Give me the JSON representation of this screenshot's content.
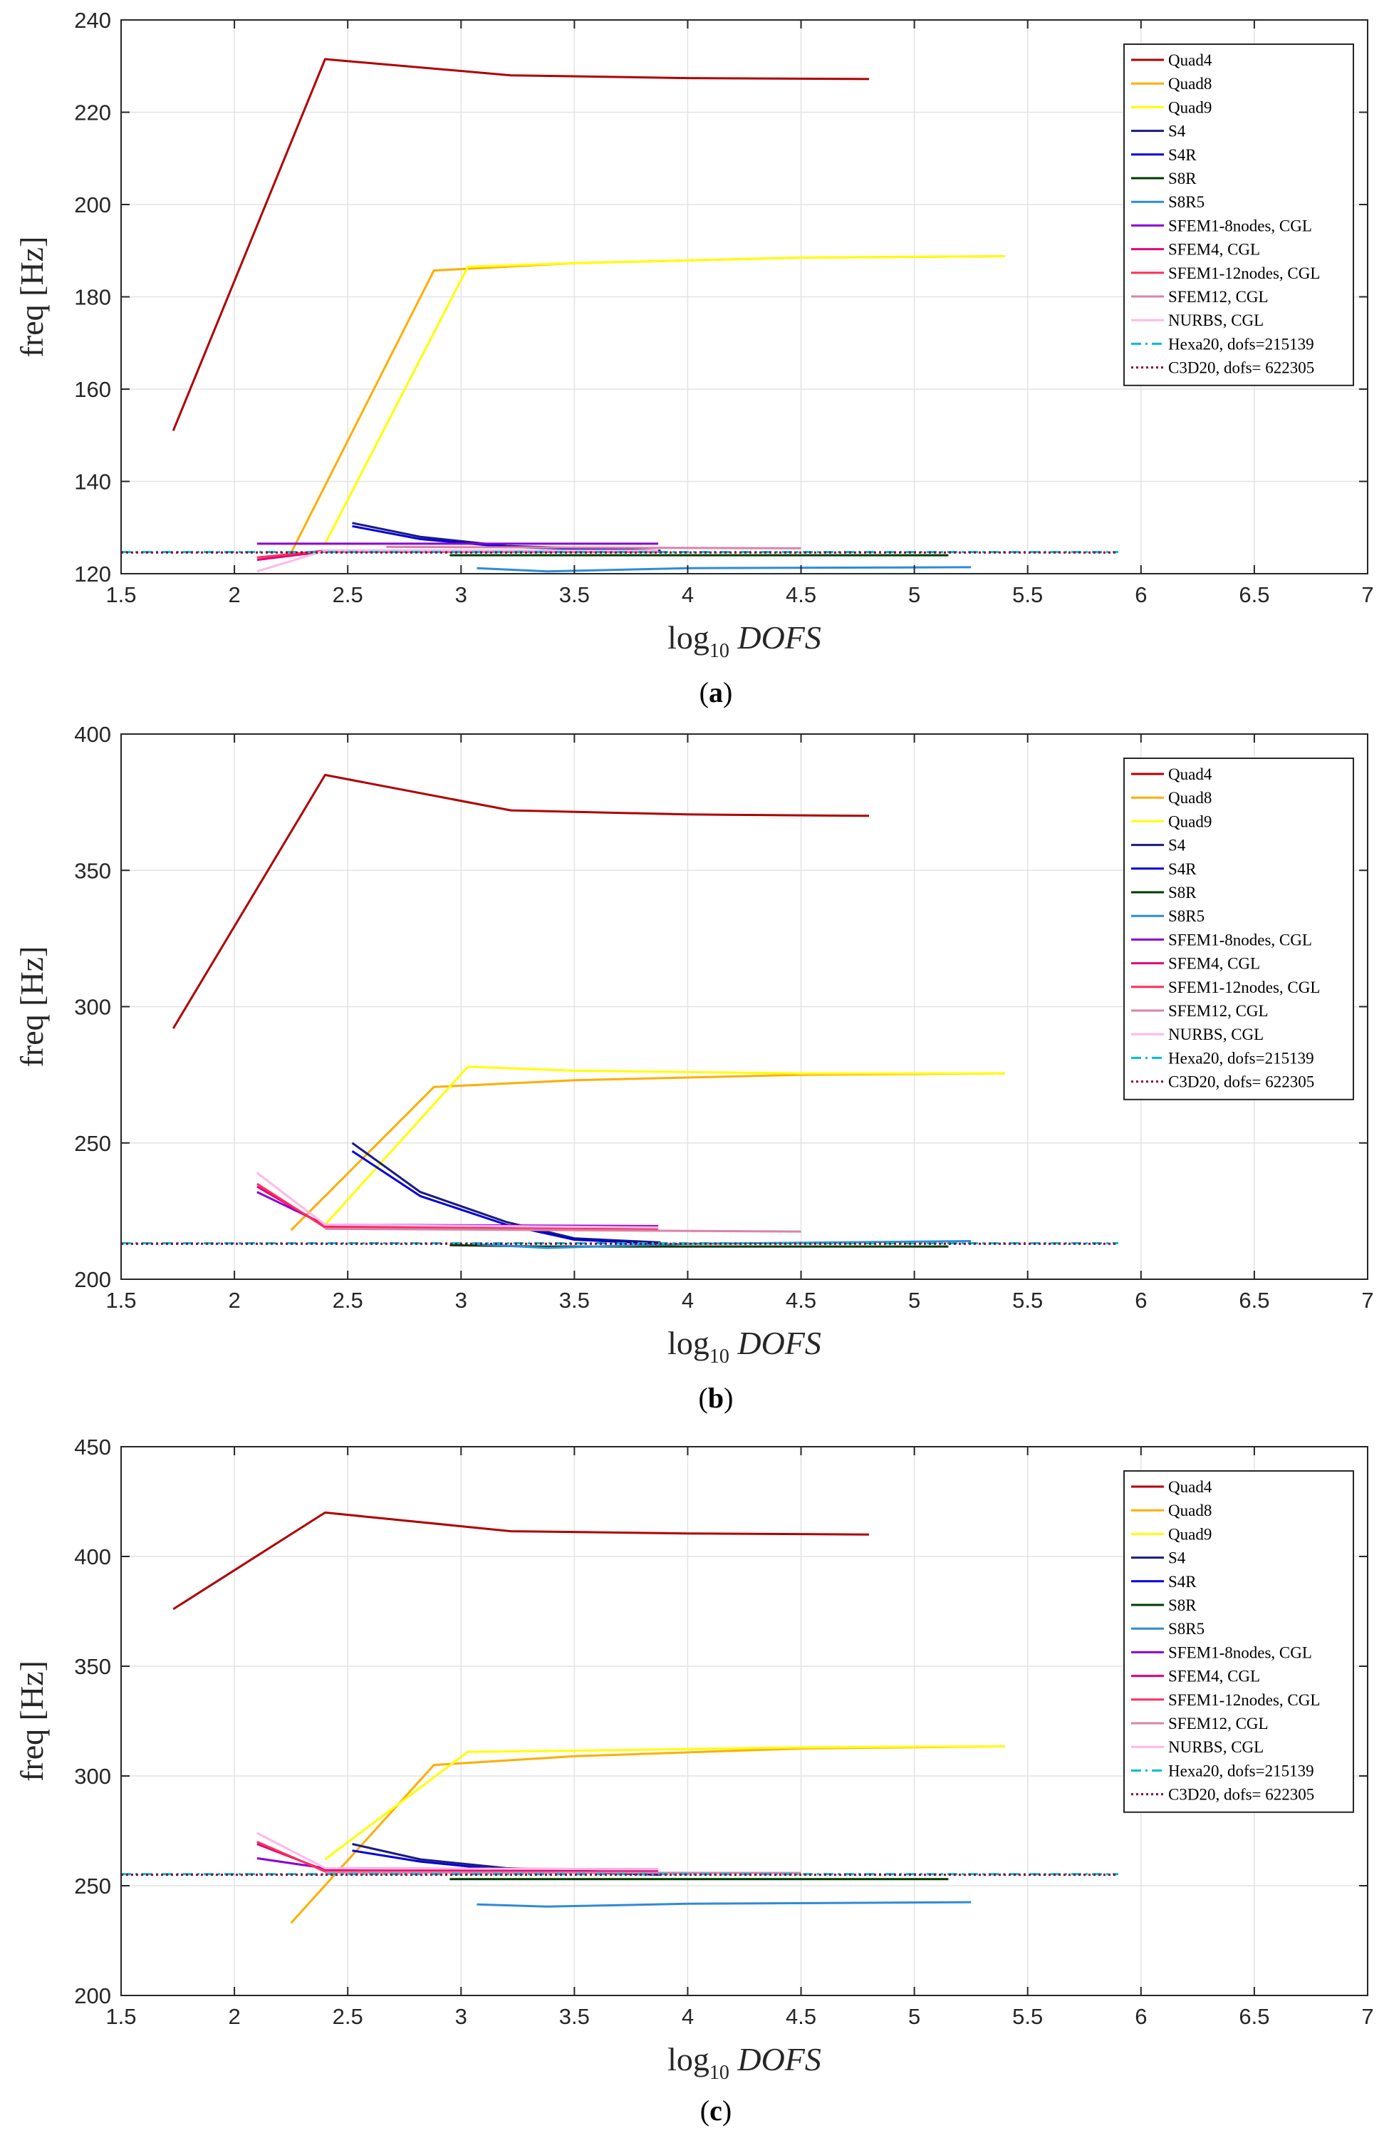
{
  "chart_data": [
    {
      "type": "line",
      "caption_letter": "a",
      "ylabel": "freq [Hz]",
      "xlabel": "log10 DOFS",
      "xlim": [
        1.5,
        7
      ],
      "ylim": [
        120,
        240
      ],
      "xticks": [
        "1.5",
        "2",
        "2.5",
        "3",
        "3.5",
        "4",
        "4.5",
        "5",
        "5.5",
        "6",
        "6.5",
        "7"
      ],
      "yticks": [
        "120",
        "140",
        "160",
        "180",
        "200",
        "220",
        "240"
      ],
      "grid": true,
      "legend_position": "top-right",
      "series": [
        {
          "name": "Quad4",
          "color": "#b00000",
          "dash": "solid",
          "points": [
            [
              1.73,
              151
            ],
            [
              2.4,
              231.5
            ],
            [
              3.22,
              228
            ],
            [
              4.0,
              227.4
            ],
            [
              4.8,
              227.2
            ]
          ]
        },
        {
          "name": "Quad8",
          "color": "#ffae00",
          "dash": "solid",
          "points": [
            [
              2.25,
              124.5
            ],
            [
              2.88,
              185.7
            ],
            [
              3.5,
              187.3
            ],
            [
              4.5,
              188.5
            ],
            [
              5.4,
              188.8
            ]
          ]
        },
        {
          "name": "Quad9",
          "color": "#ffff00",
          "dash": "solid",
          "points": [
            [
              2.4,
              126.5
            ],
            [
              3.03,
              186.5
            ],
            [
              3.5,
              187.3
            ],
            [
              4.5,
              188.5
            ],
            [
              5.4,
              188.8
            ]
          ]
        },
        {
          "name": "S4",
          "color": "#1a1a80",
          "dash": "solid",
          "points": [
            [
              2.52,
              131
            ],
            [
              2.82,
              128
            ],
            [
              3.2,
              126
            ],
            [
              3.88,
              125
            ]
          ]
        },
        {
          "name": "S4R",
          "color": "#0000dd",
          "dash": "solid",
          "points": [
            [
              2.52,
              130.3
            ],
            [
              2.82,
              127.5
            ],
            [
              3.2,
              125.8
            ],
            [
              3.88,
              124.9
            ]
          ]
        },
        {
          "name": "S8R",
          "color": "#003a00",
          "dash": "solid",
          "points": [
            [
              2.95,
              124
            ],
            [
              3.35,
              124
            ],
            [
              4.0,
              124
            ],
            [
              5.15,
              124
            ]
          ]
        },
        {
          "name": "S8R5",
          "color": "#2e8bd8",
          "dash": "solid",
          "points": [
            [
              3.07,
              121.2
            ],
            [
              3.38,
              120.5
            ],
            [
              4.0,
              121.2
            ],
            [
              5.25,
              121.4
            ]
          ]
        },
        {
          "name": "SFEM1-8nodes, CGL",
          "color": "#8a00d8",
          "dash": "solid",
          "points": [
            [
              2.1,
              126.5
            ],
            [
              2.4,
              126.5
            ],
            [
              3.87,
              126.5
            ]
          ]
        },
        {
          "name": "SFEM4, CGL",
          "color": "#e0007a",
          "dash": "solid",
          "points": [
            [
              2.1,
              123
            ],
            [
              2.4,
              124.8
            ],
            [
              3.87,
              124.8
            ]
          ]
        },
        {
          "name": "SFEM1-12nodes, CGL",
          "color": "#ff2e5c",
          "dash": "solid",
          "points": [
            [
              2.1,
              123.5
            ],
            [
              2.4,
              125
            ],
            [
              3.87,
              125
            ]
          ]
        },
        {
          "name": "SFEM12, CGL",
          "color": "#d884a8",
          "dash": "solid",
          "points": [
            [
              2.67,
              125.8
            ],
            [
              4.5,
              125.5
            ]
          ]
        },
        {
          "name": "NURBS, CGL",
          "color": "#ffb8e8",
          "dash": "solid",
          "points": [
            [
              2.1,
              120.5
            ],
            [
              2.4,
              125
            ],
            [
              3.87,
              125
            ]
          ]
        },
        {
          "name": "Hexa20, dofs=215139",
          "color": "#00bcd4",
          "dash": "dashdot",
          "points": [
            [
              1.5,
              124.7
            ],
            [
              5.9,
              124.7
            ]
          ]
        },
        {
          "name": "C3D20, dofs= 622305",
          "color": "#8b0030",
          "dash": "dotted",
          "points": [
            [
              1.5,
              124.6
            ],
            [
              5.9,
              124.6
            ]
          ]
        }
      ]
    },
    {
      "type": "line",
      "caption_letter": "b",
      "ylabel": "freq [Hz]",
      "xlabel": "log10 DOFS",
      "xlim": [
        1.5,
        7
      ],
      "ylim": [
        200,
        400
      ],
      "xticks": [
        "1.5",
        "2",
        "2.5",
        "3",
        "3.5",
        "4",
        "4.5",
        "5",
        "5.5",
        "6",
        "6.5",
        "7"
      ],
      "yticks": [
        "200",
        "250",
        "300",
        "350",
        "400"
      ],
      "grid": true,
      "legend_position": "top-right",
      "series": [
        {
          "name": "Quad4",
          "color": "#b00000",
          "dash": "solid",
          "points": [
            [
              1.73,
              292
            ],
            [
              2.4,
              385
            ],
            [
              3.22,
              372
            ],
            [
              4.0,
              370.5
            ],
            [
              4.8,
              370
            ]
          ]
        },
        {
          "name": "Quad8",
          "color": "#ffae00",
          "dash": "solid",
          "points": [
            [
              2.25,
              218
            ],
            [
              2.88,
              270.5
            ],
            [
              3.5,
              273
            ],
            [
              4.5,
              275
            ],
            [
              5.4,
              275.5
            ]
          ]
        },
        {
          "name": "Quad9",
          "color": "#ffff00",
          "dash": "solid",
          "points": [
            [
              2.4,
              220
            ],
            [
              3.03,
              278
            ],
            [
              3.5,
              276.5
            ],
            [
              4.5,
              275.5
            ],
            [
              5.4,
              275.5
            ]
          ]
        },
        {
          "name": "S4",
          "color": "#1a1a80",
          "dash": "solid",
          "points": [
            [
              2.52,
              250
            ],
            [
              2.82,
              232
            ],
            [
              3.2,
              221
            ],
            [
              3.5,
              215
            ],
            [
              3.88,
              213.5
            ]
          ]
        },
        {
          "name": "S4R",
          "color": "#0000dd",
          "dash": "solid",
          "points": [
            [
              2.52,
              247
            ],
            [
              2.82,
              230.5
            ],
            [
              3.2,
              220
            ],
            [
              3.5,
              214.5
            ],
            [
              3.88,
              213
            ]
          ]
        },
        {
          "name": "S8R",
          "color": "#003a00",
          "dash": "solid",
          "points": [
            [
              2.95,
              212.5
            ],
            [
              3.35,
              212
            ],
            [
              4.0,
              212
            ],
            [
              5.15,
              212
            ]
          ]
        },
        {
          "name": "S8R5",
          "color": "#2e8bd8",
          "dash": "solid",
          "points": [
            [
              3.07,
              212.8
            ],
            [
              3.38,
              211.5
            ],
            [
              4.0,
              213
            ],
            [
              5.25,
              214
            ]
          ]
        },
        {
          "name": "SFEM1-8nodes, CGL",
          "color": "#8a00d8",
          "dash": "solid",
          "points": [
            [
              2.1,
              232
            ],
            [
              2.4,
              220
            ],
            [
              3.87,
              219.5
            ]
          ]
        },
        {
          "name": "SFEM4, CGL",
          "color": "#e0007a",
          "dash": "solid",
          "points": [
            [
              2.1,
              234
            ],
            [
              2.4,
              219.5
            ],
            [
              3.87,
              218.5
            ]
          ]
        },
        {
          "name": "SFEM1-12nodes, CGL",
          "color": "#ff2e5c",
          "dash": "solid",
          "points": [
            [
              2.1,
              235
            ],
            [
              2.4,
              219
            ],
            [
              3.87,
              218.5
            ]
          ]
        },
        {
          "name": "SFEM12, CGL",
          "color": "#d884a8",
          "dash": "solid",
          "points": [
            [
              2.4,
              218.5
            ],
            [
              4.5,
              217.5
            ]
          ]
        },
        {
          "name": "NURBS, CGL",
          "color": "#ffb8e8",
          "dash": "solid",
          "points": [
            [
              2.1,
              239
            ],
            [
              2.4,
              220
            ],
            [
              3.87,
              219
            ]
          ]
        },
        {
          "name": "Hexa20, dofs=215139",
          "color": "#00bcd4",
          "dash": "dashdot",
          "points": [
            [
              1.5,
              213.2
            ],
            [
              5.9,
              213.2
            ]
          ]
        },
        {
          "name": "C3D20, dofs= 622305",
          "color": "#8b0030",
          "dash": "dotted",
          "points": [
            [
              1.5,
              213
            ],
            [
              5.9,
              213
            ]
          ]
        }
      ]
    },
    {
      "type": "line",
      "caption_letter": "c",
      "ylabel": "freq [Hz]",
      "xlabel": "log10 DOFS",
      "xlim": [
        1.5,
        7
      ],
      "ylim": [
        200,
        450
      ],
      "xticks": [
        "1.5",
        "2",
        "2.5",
        "3",
        "3.5",
        "4",
        "4.5",
        "5",
        "5.5",
        "6",
        "6.5",
        "7"
      ],
      "yticks": [
        "200",
        "250",
        "300",
        "350",
        "400",
        "450"
      ],
      "grid": true,
      "legend_position": "top-right",
      "series": [
        {
          "name": "Quad4",
          "color": "#b00000",
          "dash": "solid",
          "points": [
            [
              1.73,
              376
            ],
            [
              2.4,
              420
            ],
            [
              3.22,
              411.5
            ],
            [
              4.0,
              410.5
            ],
            [
              4.8,
              410
            ]
          ]
        },
        {
          "name": "Quad8",
          "color": "#ffae00",
          "dash": "solid",
          "points": [
            [
              2.25,
              233
            ],
            [
              2.88,
              305
            ],
            [
              3.5,
              309
            ],
            [
              4.5,
              312.5
            ],
            [
              5.4,
              313.5
            ]
          ]
        },
        {
          "name": "Quad9",
          "color": "#ffff00",
          "dash": "solid",
          "points": [
            [
              2.4,
              262
            ],
            [
              3.03,
              311
            ],
            [
              3.5,
              311.5
            ],
            [
              4.5,
              313
            ],
            [
              5.4,
              313.5
            ]
          ]
        },
        {
          "name": "S4",
          "color": "#1a1a80",
          "dash": "solid",
          "points": [
            [
              2.52,
              269
            ],
            [
              2.82,
              262
            ],
            [
              3.2,
              258
            ],
            [
              3.88,
              255.5
            ]
          ]
        },
        {
          "name": "S4R",
          "color": "#0000dd",
          "dash": "solid",
          "points": [
            [
              2.52,
              266
            ],
            [
              2.82,
              261
            ],
            [
              3.2,
              257
            ],
            [
              3.88,
              255
            ]
          ]
        },
        {
          "name": "S8R",
          "color": "#003a00",
          "dash": "solid",
          "points": [
            [
              2.95,
              253
            ],
            [
              3.35,
              253
            ],
            [
              4.0,
              253
            ],
            [
              5.15,
              253
            ]
          ]
        },
        {
          "name": "S8R5",
          "color": "#2e8bd8",
          "dash": "solid",
          "points": [
            [
              3.07,
              241.5
            ],
            [
              3.38,
              240.5
            ],
            [
              4.0,
              241.8
            ],
            [
              5.25,
              242.5
            ]
          ]
        },
        {
          "name": "SFEM1-8nodes, CGL",
          "color": "#8a00d8",
          "dash": "solid",
          "points": [
            [
              2.1,
              262.5
            ],
            [
              2.4,
              258
            ],
            [
              3.87,
              257.5
            ]
          ]
        },
        {
          "name": "SFEM4, CGL",
          "color": "#e0007a",
          "dash": "solid",
          "points": [
            [
              2.1,
              269
            ],
            [
              2.4,
              257
            ],
            [
              3.87,
              256.5
            ]
          ]
        },
        {
          "name": "SFEM1-12nodes, CGL",
          "color": "#ff2e5c",
          "dash": "solid",
          "points": [
            [
              2.1,
              270
            ],
            [
              2.4,
              256.5
            ],
            [
              3.87,
              256
            ]
          ]
        },
        {
          "name": "SFEM12, CGL",
          "color": "#d884a8",
          "dash": "solid",
          "points": [
            [
              2.4,
              256
            ],
            [
              4.5,
              255.8
            ]
          ]
        },
        {
          "name": "NURBS, CGL",
          "color": "#ffb8e8",
          "dash": "solid",
          "points": [
            [
              2.1,
              274
            ],
            [
              2.4,
              258
            ],
            [
              3.87,
              257.5
            ]
          ]
        },
        {
          "name": "Hexa20, dofs=215139",
          "color": "#00bcd4",
          "dash": "dashdot",
          "points": [
            [
              1.5,
              255.3
            ],
            [
              5.9,
              255.3
            ]
          ]
        },
        {
          "name": "C3D20, dofs= 622305",
          "color": "#8b0030",
          "dash": "dotted",
          "points": [
            [
              1.5,
              255
            ],
            [
              5.9,
              255
            ]
          ]
        }
      ]
    }
  ]
}
